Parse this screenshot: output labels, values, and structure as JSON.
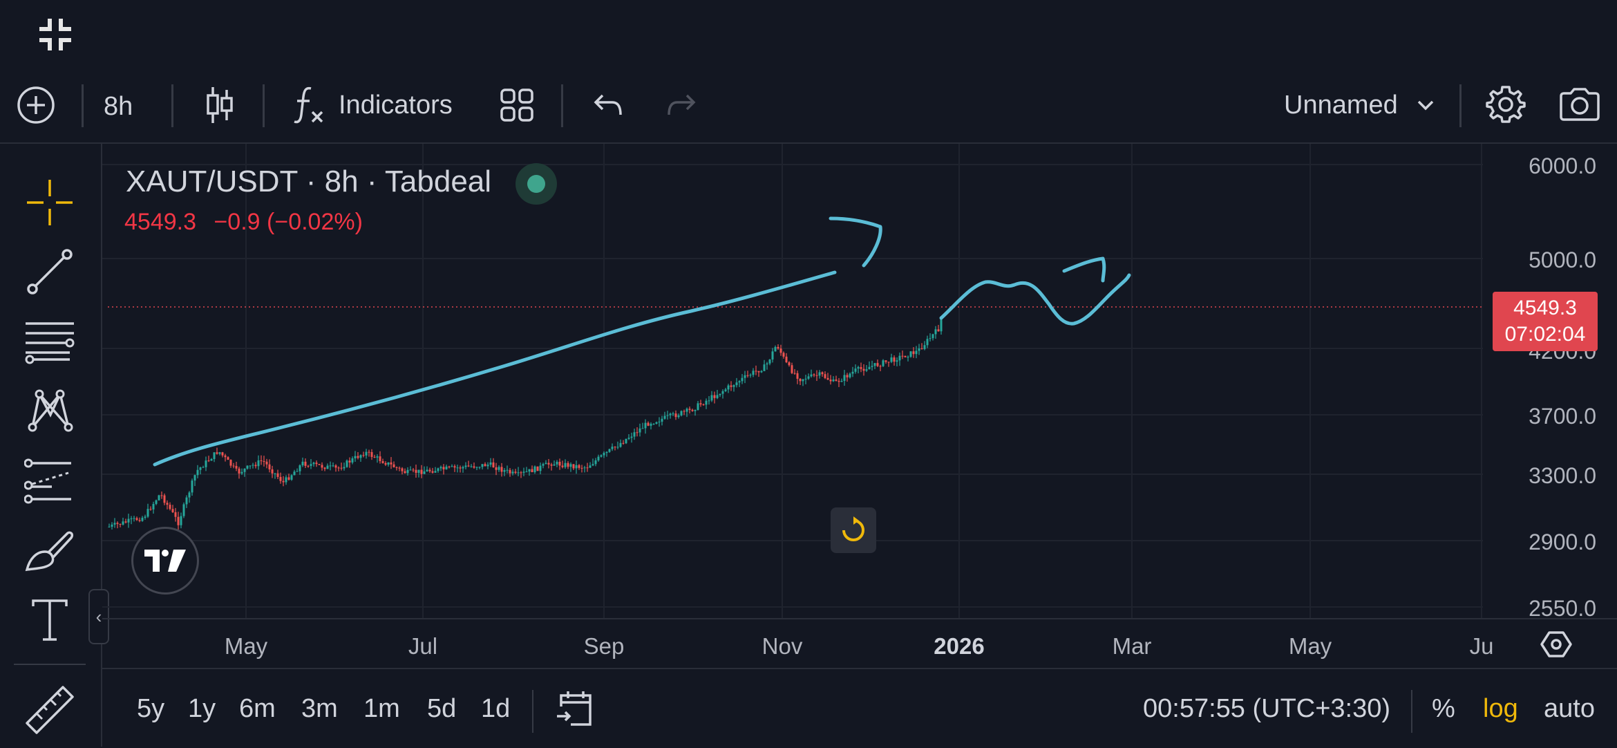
{
  "toolbar": {
    "interval": "8h",
    "indicators_label": "Indicators",
    "layout_name": "Unnamed"
  },
  "legend": {
    "symbol": "XAUT/USDT · 8h · Tabdeal",
    "last_price": "4549.3",
    "change": "−0.9 (−0.02%)"
  },
  "price_axis": {
    "ticks": [
      "6000.0",
      "5000.0",
      "4200.0",
      "3700.0",
      "3300.0",
      "2900.0",
      "2550.0"
    ],
    "current_price": "4549.3",
    "countdown": "07:02:04"
  },
  "time_axis": {
    "ticks": [
      "May",
      "Jul",
      "Sep",
      "Nov",
      "2026",
      "Mar",
      "May",
      "Ju"
    ]
  },
  "bottom_bar": {
    "ranges": [
      "5y",
      "1y",
      "6m",
      "3m",
      "1m",
      "5d",
      "1d"
    ],
    "clock": "00:57:55 (UTC+3:30)",
    "percent": "%",
    "log": "log",
    "auto": "auto"
  },
  "colors": {
    "background": "#131722",
    "up": "#26a69a",
    "down": "#ef5350",
    "drawing": "#5bbdd6",
    "accent": "#f0b90b",
    "price_tag": "#e0464f"
  },
  "icons": {
    "exit_fullscreen": "collapse-icon",
    "add": "plus-circle-icon",
    "chart_type": "candles-icon",
    "indicators": "fx-icon",
    "layouts": "grid-icon",
    "undo": "undo-icon",
    "redo": "redo-icon",
    "settings": "gear-icon",
    "snapshot": "camera-icon"
  }
}
